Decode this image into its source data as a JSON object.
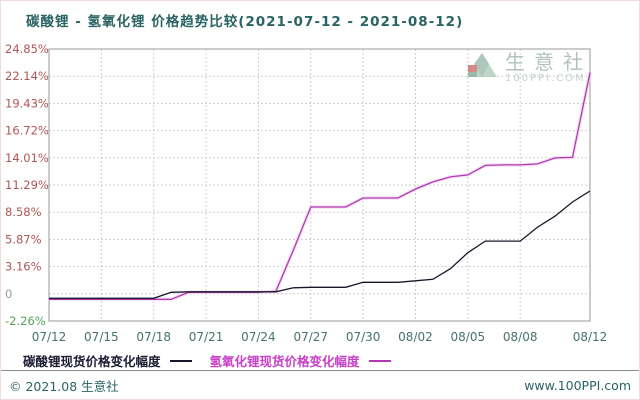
{
  "title": {
    "text": "碳酸锂 - 氢氧化锂 价格趋势比较(2021-07-12 - 2021-08-12)"
  },
  "watermark": {
    "name": "生意社",
    "site": "100PPI.COM"
  },
  "footer": {
    "copyright": "© 2021.08 生意社",
    "site": "www.100PPI.com"
  },
  "colors": {
    "title": "#2a6363",
    "axis_label_red": "#b05555",
    "axis_label_gray": "#9a9a9a",
    "axis_label_green": "#58a058",
    "x_label": "#467272",
    "grid": "#cfcfcf",
    "plot_border": "#9a9a9a",
    "carbonate_line": "#17172b",
    "hydroxide_line": "#b23ab2",
    "hydroxide_halo": "#eeccee"
  },
  "chart_data": {
    "type": "line",
    "title": "碳酸锂 - 氢氧化锂 价格趋势比较(2021-07-12 - 2021-08-12)",
    "xlabel": "",
    "ylabel": "",
    "grid": true,
    "legend_position": "bottom",
    "ylim": [
      -2.26,
      24.85
    ],
    "y_tick_labels": [
      "24.85%",
      "22.14%",
      "19.43%",
      "16.72%",
      "14.01%",
      "11.29%",
      "8.58%",
      "5.87%",
      "3.16%",
      "0",
      "-2.26%"
    ],
    "x": [
      "07/12",
      "07/13",
      "07/14",
      "07/15",
      "07/16",
      "07/17",
      "07/18",
      "07/19",
      "07/20",
      "07/21",
      "07/22",
      "07/23",
      "07/24",
      "07/25",
      "07/26",
      "07/27",
      "07/28",
      "07/29",
      "07/30",
      "07/31",
      "08/01",
      "08/02",
      "08/03",
      "08/04",
      "08/05",
      "08/06",
      "08/07",
      "08/08",
      "08/09",
      "08/10",
      "08/11",
      "08/12"
    ],
    "x_tick_labels": [
      "07/12",
      "07/15",
      "07/18",
      "07/21",
      "07/24",
      "07/27",
      "07/30",
      "08/02",
      "08/05",
      "08/08",
      "08/12"
    ],
    "series": [
      {
        "name": "碳酸锂现货价格变化幅度",
        "color": "#17172b",
        "values": [
          0,
          0,
          0,
          0,
          0,
          0,
          0,
          0.6,
          0.65,
          0.65,
          0.65,
          0.65,
          0.65,
          0.65,
          1.05,
          1.1,
          1.1,
          1.1,
          1.6,
          1.6,
          1.6,
          1.75,
          1.9,
          2.95,
          4.55,
          5.7,
          5.7,
          5.7,
          7.1,
          8.2,
          9.6,
          10.7
        ]
      },
      {
        "name": "氢氧化锂现货价格变化幅度",
        "color": "#b23ab2",
        "values": [
          -0.1,
          -0.1,
          -0.1,
          -0.1,
          -0.1,
          -0.1,
          -0.1,
          -0.1,
          0.6,
          0.6,
          0.6,
          0.6,
          0.6,
          0.7,
          4.8,
          9.1,
          9.1,
          9.1,
          10.0,
          10.0,
          10.0,
          10.9,
          11.6,
          12.1,
          12.3,
          13.25,
          13.3,
          13.3,
          13.4,
          14.0,
          14.05,
          22.5
        ]
      }
    ]
  }
}
